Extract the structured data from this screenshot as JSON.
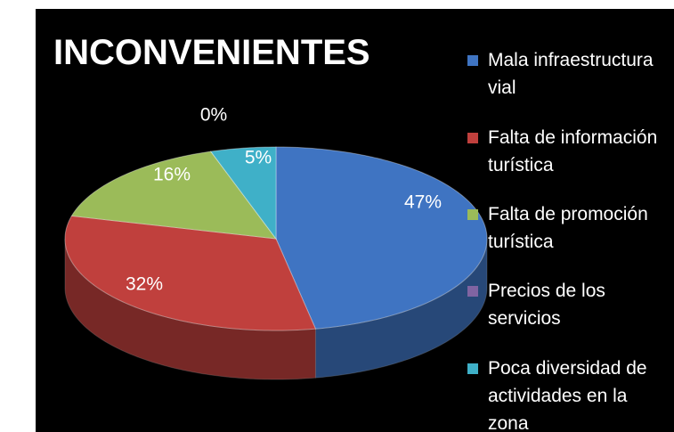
{
  "chart_data": {
    "type": "pie",
    "title": "INCONVENIENTES",
    "categories": [
      "Mala infraestructura vial",
      "Falta de información turística",
      "Falta de promoción turística",
      "Precios de los servicios",
      "Poca diversidad de actividades en la zona"
    ],
    "values": [
      47,
      32,
      16,
      0,
      5
    ],
    "value_labels": [
      "47%",
      "32%",
      "16%",
      "0%",
      "5%"
    ],
    "colors": [
      "#3f74c2",
      "#c0403d",
      "#9bbb59",
      "#8064a2",
      "#3fb0c8"
    ],
    "legend": "right"
  }
}
